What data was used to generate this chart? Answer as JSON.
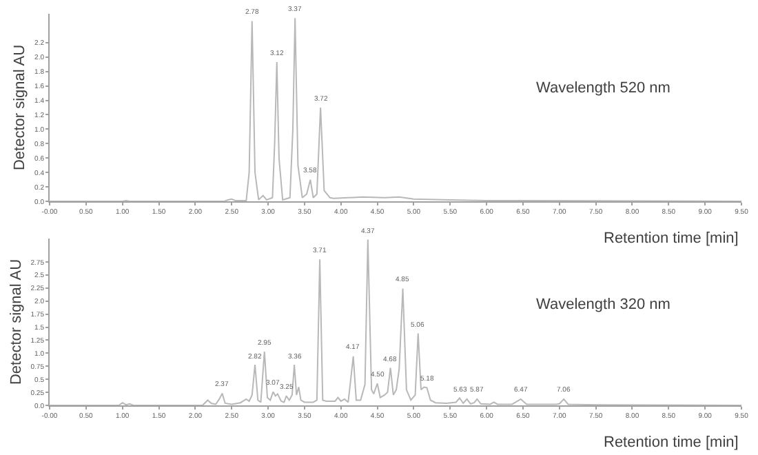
{
  "chart_data": [
    {
      "type": "line",
      "ylabel": "Detector signal AU",
      "xlabel": "Retention time [min]",
      "color": "#b8b8b8",
      "marker": "none",
      "x": [
        0,
        1.0,
        1.05,
        1.1,
        2.4,
        2.45,
        2.5,
        2.55,
        2.7,
        2.74,
        2.78,
        2.82,
        2.87,
        2.93,
        2.98,
        3.06,
        3.09,
        3.12,
        3.15,
        3.2,
        3.3,
        3.34,
        3.37,
        3.41,
        3.47,
        3.53,
        3.58,
        3.62,
        3.67,
        3.72,
        3.77,
        3.85,
        3.9,
        4.3,
        4.6,
        4.8,
        5.0,
        5.5,
        6.0,
        9.5
      ],
      "values": [
        0,
        0,
        0.01,
        0,
        0,
        0.02,
        0.03,
        0.01,
        0.01,
        0.4,
        2.5,
        0.4,
        0.02,
        0.08,
        0.02,
        0.05,
        0.8,
        1.93,
        0.6,
        0.02,
        0.05,
        1.0,
        2.54,
        0.5,
        0.05,
        0.1,
        0.3,
        0.05,
        0.1,
        1.3,
        0.15,
        0.05,
        0.04,
        0.06,
        0.05,
        0.06,
        0.03,
        0.02,
        0.01,
        0
      ],
      "xlim": [
        0,
        9.5
      ],
      "ylim": [
        0,
        2.6
      ],
      "xticks": [
        {
          "value": 0,
          "label": "-0.00"
        },
        {
          "value": 0.5,
          "label": "0.50"
        },
        {
          "value": 1,
          "label": "1.00"
        },
        {
          "value": 1.5,
          "label": "1.50"
        },
        {
          "value": 2,
          "label": "2.00"
        },
        {
          "value": 2.5,
          "label": "2.50"
        },
        {
          "value": 3,
          "label": "3.00"
        },
        {
          "value": 3.5,
          "label": "3.50"
        },
        {
          "value": 4,
          "label": "4.00"
        },
        {
          "value": 4.5,
          "label": "4.50"
        },
        {
          "value": 5,
          "label": "5.00"
        },
        {
          "value": 5.5,
          "label": "5.50"
        },
        {
          "value": 6,
          "label": "6.00"
        },
        {
          "value": 6.5,
          "label": "6.50"
        },
        {
          "value": 7,
          "label": "7.00"
        },
        {
          "value": 7.5,
          "label": "7.50"
        },
        {
          "value": 8,
          "label": "8.00"
        },
        {
          "value": 8.5,
          "label": "8.50"
        },
        {
          "value": 9,
          "label": "9.00"
        },
        {
          "value": 9.5,
          "label": "9.50"
        }
      ],
      "yticks": [
        {
          "value": 0,
          "label": "0.0"
        },
        0.2,
        0.4,
        0.6,
        0.8,
        {
          "value": 1,
          "label": "1.0"
        },
        1.2,
        1.4,
        1.6,
        1.8,
        {
          "value": 2,
          "label": "2.0"
        },
        2.2
      ],
      "annotations": [
        "Wavelength 520 nm",
        {
          "text": "2.78",
          "x": 2.78,
          "y": 2.5
        },
        {
          "text": "3.12",
          "x": 3.12,
          "y": 1.93
        },
        {
          "text": "3.37",
          "x": 3.37,
          "y": 2.54
        },
        {
          "text": "3.58",
          "x": 3.58,
          "y": 0.3
        },
        {
          "text": "3.72",
          "x": 3.72,
          "y": 1.3
        }
      ]
    },
    {
      "type": "line",
      "ylabel": "Detector signal AU",
      "xlabel": "Retention time [min]",
      "color": "#b8b8b8",
      "marker": "none",
      "x": [
        0,
        0.95,
        1.0,
        1.05,
        1.1,
        1.15,
        2.1,
        2.17,
        2.22,
        2.28,
        2.33,
        2.37,
        2.41,
        2.5,
        2.62,
        2.7,
        2.74,
        2.78,
        2.82,
        2.86,
        2.9,
        2.95,
        2.99,
        3.03,
        3.07,
        3.1,
        3.13,
        3.18,
        3.22,
        3.25,
        3.29,
        3.33,
        3.36,
        3.39,
        3.42,
        3.45,
        3.5,
        3.62,
        3.67,
        3.71,
        3.75,
        3.8,
        3.92,
        3.96,
        4.0,
        4.05,
        4.1,
        4.17,
        4.21,
        4.27,
        4.33,
        4.37,
        4.42,
        4.45,
        4.5,
        4.54,
        4.6,
        4.64,
        4.68,
        4.72,
        4.76,
        4.8,
        4.85,
        4.9,
        4.96,
        5.02,
        5.06,
        5.1,
        5.14,
        5.18,
        5.23,
        5.3,
        5.45,
        5.58,
        5.63,
        5.68,
        5.73,
        5.78,
        5.83,
        5.87,
        5.92,
        6.05,
        6.1,
        6.15,
        6.35,
        6.47,
        6.55,
        6.95,
        7.0,
        7.06,
        7.12,
        7.5,
        9.5
      ],
      "values": [
        0,
        0,
        0.05,
        0.01,
        0.03,
        0,
        0,
        0.1,
        0.04,
        0.02,
        0.12,
        0.23,
        0.04,
        0.02,
        0.05,
        0.12,
        0.08,
        0.2,
        0.78,
        0.1,
        0.06,
        1.03,
        0.15,
        0.1,
        0.26,
        0.18,
        0.22,
        0.08,
        0.06,
        0.18,
        0.1,
        0.2,
        0.78,
        0.2,
        0.35,
        0.1,
        0.06,
        0.06,
        0.1,
        2.8,
        0.1,
        0.08,
        0.08,
        0.15,
        0.08,
        0.12,
        0.06,
        0.94,
        0.1,
        0.1,
        0.4,
        3.18,
        0.3,
        0.22,
        0.42,
        0.15,
        0.2,
        0.25,
        0.72,
        0.2,
        0.3,
        0.7,
        2.24,
        0.3,
        0.1,
        0.2,
        1.38,
        0.3,
        0.35,
        0.34,
        0.1,
        0.05,
        0.04,
        0.06,
        0.14,
        0.04,
        0.12,
        0.03,
        0.05,
        0.12,
        0.03,
        0.02,
        0.06,
        0.02,
        0.02,
        0.12,
        0.02,
        0.02,
        0.03,
        0.12,
        0.02,
        0.01,
        0
      ],
      "xlim": [
        0,
        9.5
      ],
      "ylim": [
        0,
        3.2
      ],
      "xticks": [
        {
          "value": 0,
          "label": "-0.00"
        },
        {
          "value": 0.5,
          "label": "0.50"
        },
        {
          "value": 1,
          "label": "1.00"
        },
        {
          "value": 1.5,
          "label": "1.50"
        },
        {
          "value": 2,
          "label": "2.00"
        },
        {
          "value": 2.5,
          "label": "2.50"
        },
        {
          "value": 3,
          "label": "3.00"
        },
        {
          "value": 3.5,
          "label": "3.50"
        },
        {
          "value": 4,
          "label": "4.00"
        },
        {
          "value": 4.5,
          "label": "4.50"
        },
        {
          "value": 5,
          "label": "5.00"
        },
        {
          "value": 5.5,
          "label": "5.50"
        },
        {
          "value": 6,
          "label": "6.00"
        },
        {
          "value": 6.5,
          "label": "6.50"
        },
        {
          "value": 7,
          "label": "7.00"
        },
        {
          "value": 7.5,
          "label": "7.50"
        },
        {
          "value": 8,
          "label": "8.00"
        },
        {
          "value": 8.5,
          "label": "8.50"
        },
        {
          "value": 9,
          "label": "9.00"
        },
        {
          "value": 9.5,
          "label": "9.50"
        }
      ],
      "yticks": [
        {
          "value": 0,
          "label": "0.0"
        },
        0.25,
        0.5,
        0.75,
        {
          "value": 1,
          "label": "1.0"
        },
        1.25,
        1.5,
        1.75,
        {
          "value": 2,
          "label": "2.0"
        },
        2.25,
        2.5,
        2.75
      ],
      "annotations": [
        "Wavelength 320 nm",
        {
          "text": "2.37",
          "x": 2.37,
          "y": 0.23
        },
        {
          "text": "2.82",
          "x": 2.82,
          "y": 0.78
        },
        {
          "text": "2.95",
          "x": 2.95,
          "y": 1.03
        },
        {
          "text": "3.07",
          "x": 3.07,
          "y": 0.26
        },
        {
          "text": "3.25",
          "x": 3.25,
          "y": 0.18
        },
        {
          "text": "3.36",
          "x": 3.36,
          "y": 0.78
        },
        {
          "text": "3.71",
          "x": 3.71,
          "y": 2.8
        },
        {
          "text": "4.17",
          "x": 4.17,
          "y": 0.94
        },
        {
          "text": "4.37",
          "x": 4.37,
          "y": 3.18
        },
        {
          "text": "4.50",
          "x": 4.5,
          "y": 0.42
        },
        {
          "text": "4.68",
          "x": 4.68,
          "y": 0.72
        },
        {
          "text": "4.85",
          "x": 4.85,
          "y": 2.24
        },
        {
          "text": "5.06",
          "x": 5.06,
          "y": 1.38
        },
        {
          "text": "5.18",
          "x": 5.18,
          "y": 0.34
        },
        {
          "text": "5.63",
          "x": 5.63,
          "y": 0.14
        },
        {
          "text": "5.87",
          "x": 5.87,
          "y": 0.12
        },
        {
          "text": "6.47",
          "x": 6.47,
          "y": 0.12
        },
        {
          "text": "7.06",
          "x": 7.06,
          "y": 0.12
        }
      ]
    }
  ]
}
